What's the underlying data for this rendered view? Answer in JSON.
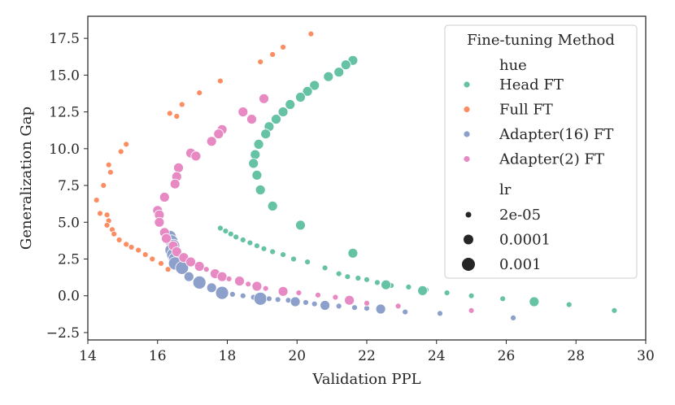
{
  "chart_data": {
    "type": "scatter",
    "title": "",
    "xlabel": "Validation PPL",
    "ylabel": "Generalization Gap",
    "xlim": [
      14,
      30
    ],
    "ylim": [
      -3,
      19
    ],
    "xticks": [
      "14",
      "16",
      "18",
      "20",
      "22",
      "24",
      "26",
      "28",
      "30"
    ],
    "yticks": [
      "−2.5",
      "0.0",
      "2.5",
      "5.0",
      "7.5",
      "10.0",
      "12.5",
      "15.0",
      "17.5"
    ],
    "xtick_values": [
      14,
      16,
      18,
      20,
      22,
      24,
      26,
      28,
      30
    ],
    "ytick_values": [
      -2.5,
      0,
      2.5,
      5,
      7.5,
      10,
      12.5,
      15,
      17.5
    ],
    "grid": false,
    "legend": {
      "title": "Fine-tuning Method",
      "placement": "top-right",
      "hue_header": "hue",
      "size_header": "lr",
      "entries": [
        {
          "label": "Head FT",
          "color": "#66c2a5"
        },
        {
          "label": "Full FT",
          "color": "#fc8d62"
        },
        {
          "label": "Adapter(16) FT",
          "color": "#8da0cb"
        },
        {
          "label": "Adapter(2) FT",
          "color": "#e78ac3"
        }
      ],
      "sizes": [
        {
          "label": "2e-05",
          "lr": "s"
        },
        {
          "label": "0.0001",
          "lr": "m"
        },
        {
          "label": "0.001",
          "lr": "l"
        }
      ]
    },
    "series": [
      {
        "name": "Head FT",
        "color": "#66c2a5",
        "points": [
          {
            "x": 21.6,
            "y": 16.0,
            "lr": "m"
          },
          {
            "x": 21.4,
            "y": 15.7,
            "lr": "m"
          },
          {
            "x": 21.2,
            "y": 15.2,
            "lr": "m"
          },
          {
            "x": 20.9,
            "y": 14.9,
            "lr": "m"
          },
          {
            "x": 20.5,
            "y": 14.3,
            "lr": "m"
          },
          {
            "x": 20.3,
            "y": 13.9,
            "lr": "m"
          },
          {
            "x": 20.1,
            "y": 13.5,
            "lr": "m"
          },
          {
            "x": 19.8,
            "y": 13.0,
            "lr": "m"
          },
          {
            "x": 19.6,
            "y": 12.5,
            "lr": "m"
          },
          {
            "x": 19.4,
            "y": 12.0,
            "lr": "m"
          },
          {
            "x": 19.2,
            "y": 11.5,
            "lr": "m"
          },
          {
            "x": 19.1,
            "y": 11.0,
            "lr": "m"
          },
          {
            "x": 18.9,
            "y": 10.3,
            "lr": "m"
          },
          {
            "x": 18.8,
            "y": 9.6,
            "lr": "m"
          },
          {
            "x": 18.75,
            "y": 9.0,
            "lr": "m"
          },
          {
            "x": 18.85,
            "y": 8.2,
            "lr": "m"
          },
          {
            "x": 18.95,
            "y": 7.2,
            "lr": "m"
          },
          {
            "x": 19.3,
            "y": 6.1,
            "lr": "m"
          },
          {
            "x": 20.1,
            "y": 4.8,
            "lr": "m"
          },
          {
            "x": 21.6,
            "y": 2.9,
            "lr": "m"
          },
          {
            "x": 26.8,
            "y": -0.4,
            "lr": "m"
          },
          {
            "x": 17.8,
            "y": 4.6,
            "lr": "s"
          },
          {
            "x": 17.95,
            "y": 4.4,
            "lr": "s"
          },
          {
            "x": 18.1,
            "y": 4.2,
            "lr": "s"
          },
          {
            "x": 18.25,
            "y": 4.0,
            "lr": "s"
          },
          {
            "x": 18.45,
            "y": 3.8,
            "lr": "s"
          },
          {
            "x": 18.65,
            "y": 3.6,
            "lr": "s"
          },
          {
            "x": 18.85,
            "y": 3.4,
            "lr": "s"
          },
          {
            "x": 19.05,
            "y": 3.2,
            "lr": "s"
          },
          {
            "x": 19.3,
            "y": 3.0,
            "lr": "s"
          },
          {
            "x": 19.6,
            "y": 2.8,
            "lr": "s"
          },
          {
            "x": 19.9,
            "y": 2.5,
            "lr": "s"
          },
          {
            "x": 20.3,
            "y": 2.3,
            "lr": "s"
          },
          {
            "x": 20.8,
            "y": 1.9,
            "lr": "s"
          },
          {
            "x": 21.2,
            "y": 1.5,
            "lr": "s"
          },
          {
            "x": 21.45,
            "y": 1.3,
            "lr": "s"
          },
          {
            "x": 21.75,
            "y": 1.2,
            "lr": "s"
          },
          {
            "x": 22.0,
            "y": 1.1,
            "lr": "s"
          },
          {
            "x": 22.3,
            "y": 0.9,
            "lr": "s"
          },
          {
            "x": 22.7,
            "y": 0.7,
            "lr": "s"
          },
          {
            "x": 23.2,
            "y": 0.6,
            "lr": "s"
          },
          {
            "x": 23.7,
            "y": 0.4,
            "lr": "s"
          },
          {
            "x": 24.3,
            "y": 0.2,
            "lr": "s"
          },
          {
            "x": 25.0,
            "y": 0.0,
            "lr": "s"
          },
          {
            "x": 25.9,
            "y": -0.2,
            "lr": "s"
          },
          {
            "x": 27.8,
            "y": -0.6,
            "lr": "s"
          },
          {
            "x": 29.1,
            "y": -1.0,
            "lr": "s"
          },
          {
            "x": 22.55,
            "y": 0.75,
            "lr": "m"
          },
          {
            "x": 23.6,
            "y": 0.35,
            "lr": "m"
          }
        ]
      },
      {
        "name": "Full FT",
        "color": "#fc8d62",
        "points": [
          {
            "x": 20.4,
            "y": 17.8,
            "lr": "s"
          },
          {
            "x": 19.6,
            "y": 16.9,
            "lr": "s"
          },
          {
            "x": 19.3,
            "y": 16.4,
            "lr": "s"
          },
          {
            "x": 18.95,
            "y": 15.9,
            "lr": "s"
          },
          {
            "x": 17.8,
            "y": 14.6,
            "lr": "s"
          },
          {
            "x": 17.2,
            "y": 13.8,
            "lr": "s"
          },
          {
            "x": 16.7,
            "y": 13.0,
            "lr": "s"
          },
          {
            "x": 16.35,
            "y": 12.4,
            "lr": "s"
          },
          {
            "x": 16.55,
            "y": 12.2,
            "lr": "s"
          },
          {
            "x": 15.1,
            "y": 10.3,
            "lr": "s"
          },
          {
            "x": 14.95,
            "y": 9.8,
            "lr": "s"
          },
          {
            "x": 14.6,
            "y": 8.9,
            "lr": "s"
          },
          {
            "x": 14.65,
            "y": 8.4,
            "lr": "s"
          },
          {
            "x": 14.45,
            "y": 7.5,
            "lr": "s"
          },
          {
            "x": 14.25,
            "y": 6.5,
            "lr": "s"
          },
          {
            "x": 14.35,
            "y": 5.6,
            "lr": "s"
          },
          {
            "x": 14.55,
            "y": 5.5,
            "lr": "s"
          },
          {
            "x": 14.6,
            "y": 5.1,
            "lr": "s"
          },
          {
            "x": 14.55,
            "y": 4.8,
            "lr": "s"
          },
          {
            "x": 14.7,
            "y": 4.5,
            "lr": "s"
          },
          {
            "x": 14.75,
            "y": 4.2,
            "lr": "s"
          },
          {
            "x": 14.9,
            "y": 3.8,
            "lr": "s"
          },
          {
            "x": 15.1,
            "y": 3.5,
            "lr": "s"
          },
          {
            "x": 15.25,
            "y": 3.3,
            "lr": "s"
          },
          {
            "x": 15.45,
            "y": 3.1,
            "lr": "s"
          },
          {
            "x": 15.65,
            "y": 2.8,
            "lr": "s"
          },
          {
            "x": 15.85,
            "y": 2.5,
            "lr": "s"
          },
          {
            "x": 16.1,
            "y": 2.2,
            "lr": "s"
          },
          {
            "x": 16.3,
            "y": 1.8,
            "lr": "s"
          }
        ]
      },
      {
        "name": "Adapter(16) FT",
        "color": "#8da0cb",
        "points": [
          {
            "x": 16.35,
            "y": 4.0,
            "lr": "l"
          },
          {
            "x": 16.4,
            "y": 3.7,
            "lr": "l"
          },
          {
            "x": 16.45,
            "y": 3.4,
            "lr": "l"
          },
          {
            "x": 16.4,
            "y": 3.1,
            "lr": "l"
          },
          {
            "x": 16.45,
            "y": 2.8,
            "lr": "l"
          },
          {
            "x": 16.5,
            "y": 2.5,
            "lr": "l"
          },
          {
            "x": 16.5,
            "y": 2.2,
            "lr": "l"
          },
          {
            "x": 16.7,
            "y": 1.9,
            "lr": "l"
          },
          {
            "x": 16.9,
            "y": 1.3,
            "lr": "m"
          },
          {
            "x": 17.2,
            "y": 0.9,
            "lr": "l"
          },
          {
            "x": 17.55,
            "y": 0.55,
            "lr": "m"
          },
          {
            "x": 17.85,
            "y": 0.2,
            "lr": "l"
          },
          {
            "x": 18.15,
            "y": 0.1,
            "lr": "s"
          },
          {
            "x": 18.45,
            "y": 0.0,
            "lr": "s"
          },
          {
            "x": 18.75,
            "y": -0.1,
            "lr": "s"
          },
          {
            "x": 18.95,
            "y": -0.2,
            "lr": "l"
          },
          {
            "x": 19.2,
            "y": -0.2,
            "lr": "s"
          },
          {
            "x": 19.45,
            "y": -0.25,
            "lr": "s"
          },
          {
            "x": 19.75,
            "y": -0.3,
            "lr": "s"
          },
          {
            "x": 19.95,
            "y": -0.4,
            "lr": "m"
          },
          {
            "x": 20.25,
            "y": -0.45,
            "lr": "s"
          },
          {
            "x": 20.5,
            "y": -0.55,
            "lr": "s"
          },
          {
            "x": 20.8,
            "y": -0.65,
            "lr": "m"
          },
          {
            "x": 21.2,
            "y": -0.7,
            "lr": "s"
          },
          {
            "x": 21.65,
            "y": -0.8,
            "lr": "s"
          },
          {
            "x": 22.0,
            "y": -0.85,
            "lr": "s"
          },
          {
            "x": 22.4,
            "y": -0.9,
            "lr": "m"
          },
          {
            "x": 23.1,
            "y": -1.1,
            "lr": "s"
          },
          {
            "x": 24.1,
            "y": -1.2,
            "lr": "s"
          },
          {
            "x": 26.2,
            "y": -1.5,
            "lr": "s"
          }
        ]
      },
      {
        "name": "Adapter(2) FT",
        "color": "#e78ac3",
        "points": [
          {
            "x": 19.05,
            "y": 13.4,
            "lr": "m"
          },
          {
            "x": 18.45,
            "y": 12.5,
            "lr": "m"
          },
          {
            "x": 18.7,
            "y": 12.0,
            "lr": "m"
          },
          {
            "x": 17.85,
            "y": 11.3,
            "lr": "m"
          },
          {
            "x": 17.75,
            "y": 11.0,
            "lr": "m"
          },
          {
            "x": 17.55,
            "y": 10.5,
            "lr": "m"
          },
          {
            "x": 16.95,
            "y": 9.7,
            "lr": "m"
          },
          {
            "x": 17.1,
            "y": 9.5,
            "lr": "m"
          },
          {
            "x": 16.6,
            "y": 8.7,
            "lr": "m"
          },
          {
            "x": 16.55,
            "y": 8.1,
            "lr": "m"
          },
          {
            "x": 16.5,
            "y": 7.6,
            "lr": "m"
          },
          {
            "x": 16.2,
            "y": 6.7,
            "lr": "m"
          },
          {
            "x": 16.0,
            "y": 5.8,
            "lr": "m"
          },
          {
            "x": 16.05,
            "y": 5.5,
            "lr": "m"
          },
          {
            "x": 16.05,
            "y": 5.0,
            "lr": "m"
          },
          {
            "x": 16.2,
            "y": 4.3,
            "lr": "m"
          },
          {
            "x": 16.25,
            "y": 3.9,
            "lr": "m"
          },
          {
            "x": 16.45,
            "y": 3.4,
            "lr": "m"
          },
          {
            "x": 16.55,
            "y": 3.0,
            "lr": "m"
          },
          {
            "x": 16.75,
            "y": 2.6,
            "lr": "m"
          },
          {
            "x": 16.95,
            "y": 2.3,
            "lr": "m"
          },
          {
            "x": 17.2,
            "y": 2.0,
            "lr": "m"
          },
          {
            "x": 17.4,
            "y": 1.8,
            "lr": "s"
          },
          {
            "x": 17.65,
            "y": 1.5,
            "lr": "m"
          },
          {
            "x": 17.85,
            "y": 1.3,
            "lr": "m"
          },
          {
            "x": 18.05,
            "y": 1.15,
            "lr": "s"
          },
          {
            "x": 18.35,
            "y": 1.0,
            "lr": "m"
          },
          {
            "x": 18.6,
            "y": 0.8,
            "lr": "s"
          },
          {
            "x": 18.85,
            "y": 0.65,
            "lr": "m"
          },
          {
            "x": 19.1,
            "y": 0.5,
            "lr": "s"
          },
          {
            "x": 19.6,
            "y": 0.3,
            "lr": "m"
          },
          {
            "x": 20.05,
            "y": 0.2,
            "lr": "s"
          },
          {
            "x": 20.6,
            "y": 0.05,
            "lr": "s"
          },
          {
            "x": 21.1,
            "y": -0.1,
            "lr": "s"
          },
          {
            "x": 21.5,
            "y": -0.3,
            "lr": "m"
          },
          {
            "x": 22.0,
            "y": -0.5,
            "lr": "s"
          },
          {
            "x": 22.9,
            "y": -0.7,
            "lr": "s"
          },
          {
            "x": 25.0,
            "y": -1.0,
            "lr": "s"
          }
        ]
      }
    ]
  }
}
